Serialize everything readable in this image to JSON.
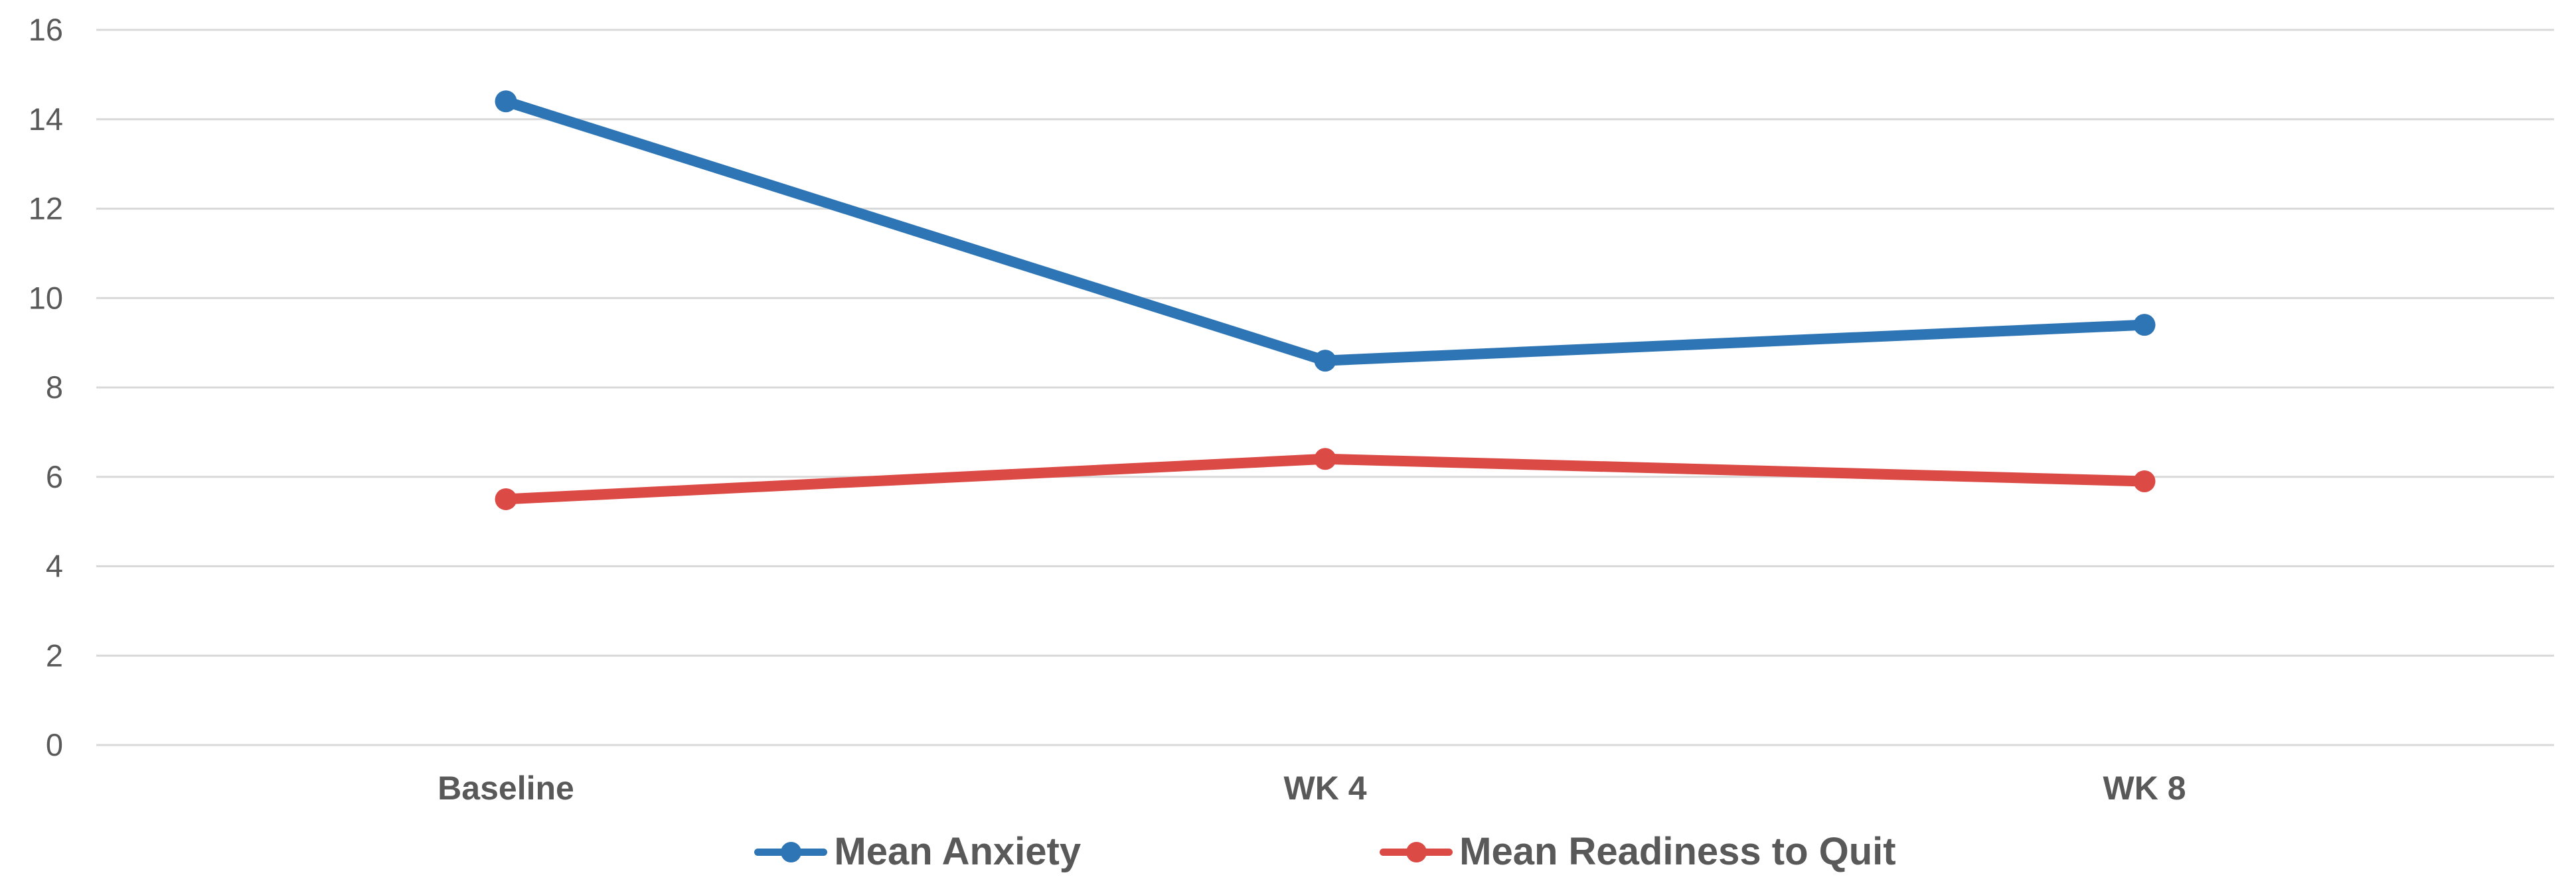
{
  "chart_data": {
    "type": "line",
    "categories": [
      "Baseline",
      "WK 4",
      "WK 8"
    ],
    "x_axis_label": "",
    "y_axis_label": "",
    "title": "",
    "ylim": [
      0,
      16
    ],
    "yticks": [
      0,
      2,
      4,
      6,
      8,
      10,
      12,
      14,
      16
    ],
    "grid": "horizontal",
    "legend_position": "bottom",
    "series": [
      {
        "name": "Mean Anxiety",
        "color": "#2E75B6",
        "values": [
          14.4,
          8.6,
          9.4
        ]
      },
      {
        "name": "Mean Readiness to Quit",
        "color": "#DC4A45",
        "values": [
          5.5,
          6.4,
          5.9
        ]
      }
    ]
  },
  "style": {
    "gridline_color": "#D9D9D9",
    "axis_text_color": "#595959",
    "category_text_color": "#595959",
    "legend_text_color": "#595959",
    "background_color": "#FFFFFF"
  },
  "legend": {
    "items": [
      {
        "label": "Mean Anxiety"
      },
      {
        "label": "Mean Readiness to Quit"
      }
    ]
  }
}
